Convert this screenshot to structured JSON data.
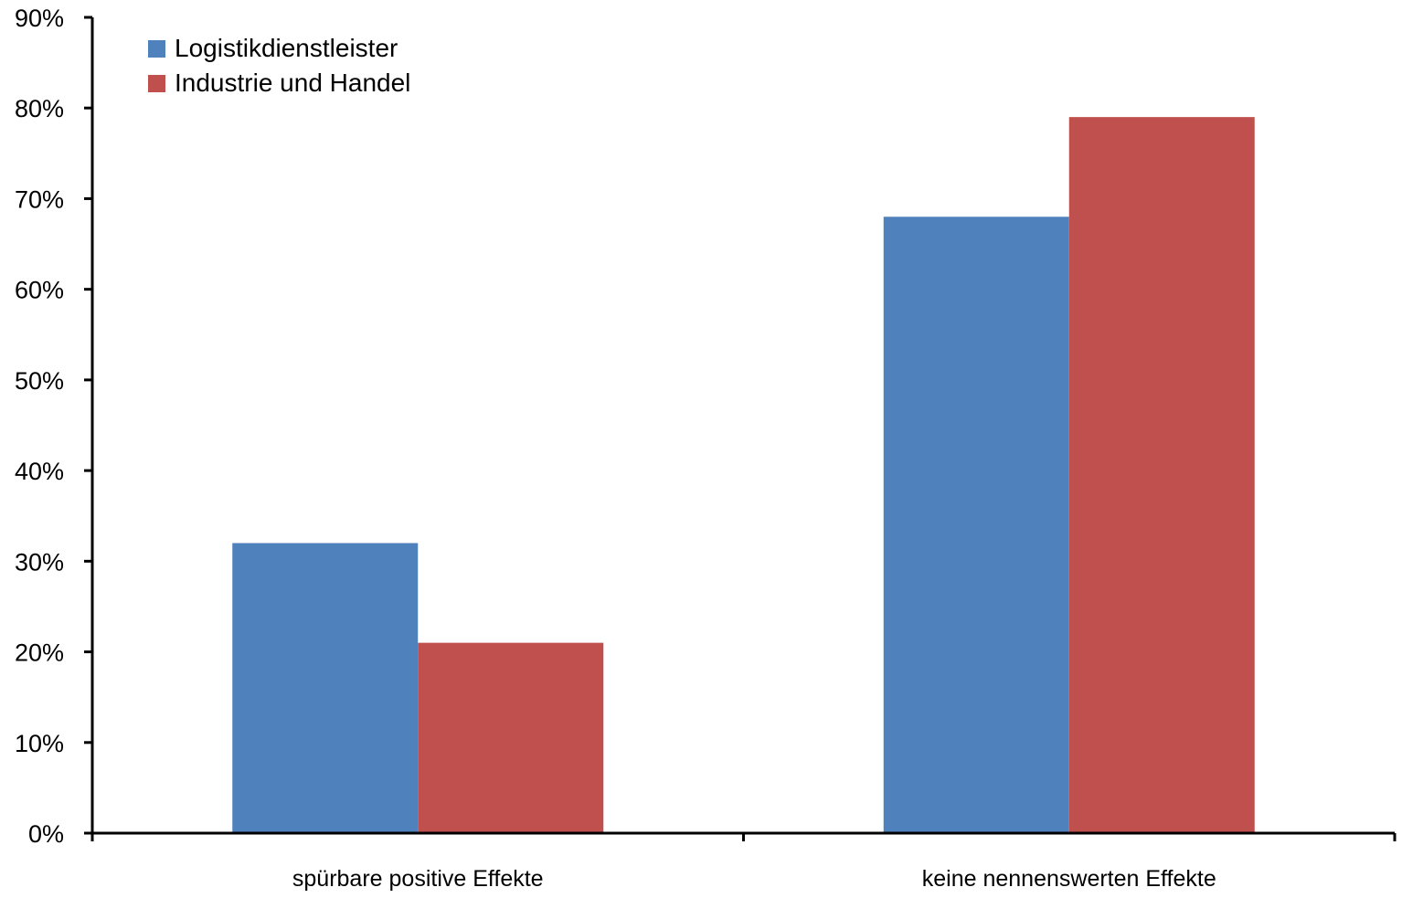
{
  "chart_data": {
    "type": "bar",
    "categories": [
      "spürbare positive Effekte",
      "keine nennenswerten Effekte"
    ],
    "series": [
      {
        "name": "Logistikdienstleister",
        "values": [
          32,
          68
        ],
        "color": "#4F81BD"
      },
      {
        "name": "Industrie und Handel",
        "values": [
          21,
          79
        ],
        "color": "#C0504D"
      }
    ],
    "y_ticks": [
      0,
      10,
      20,
      30,
      40,
      50,
      60,
      70,
      80,
      90
    ],
    "y_tick_labels": [
      "0%",
      "10%",
      "20%",
      "30%",
      "40%",
      "50%",
      "60%",
      "70%",
      "80%",
      "90%"
    ],
    "ylim": [
      0,
      90
    ],
    "grid": false,
    "legend_position": "top-left",
    "title": "",
    "xlabel": "",
    "ylabel": ""
  }
}
